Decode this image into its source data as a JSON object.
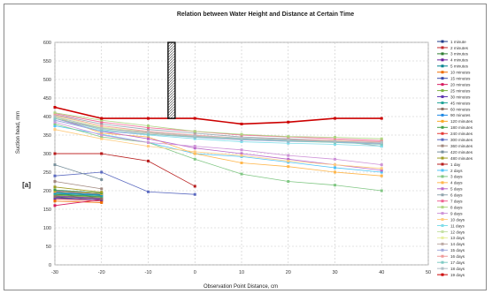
{
  "chart_data": {
    "type": "line",
    "title": "Relation between Water Height and Distance at Certain Time",
    "xlabel": "Observation Point Distance, cm",
    "ylabel": "Suction head, mm",
    "xlim": [
      -30,
      50
    ],
    "ylim": [
      0,
      600
    ],
    "xticks": [
      "-30",
      "-20",
      "-10",
      "0",
      "10",
      "20",
      "30",
      "40",
      "50"
    ],
    "yticks": [
      "0",
      "50",
      "100",
      "150",
      "200",
      "250",
      "300",
      "350",
      "400",
      "450",
      "500",
      "550",
      "600"
    ],
    "grid": true,
    "legend_position": "right",
    "annotation_marker_label": "[a]",
    "series": [
      {
        "name": "1 minute",
        "color": "#1f3a8a",
        "x": [
          -30,
          -20
        ],
        "y": [
          182,
          176
        ]
      },
      {
        "name": "2 minutes",
        "color": "#c1272d",
        "x": [
          -30,
          -20
        ],
        "y": [
          178,
          172
        ]
      },
      {
        "name": "3 minutes",
        "color": "#2e7d32",
        "x": [
          -30,
          -20
        ],
        "y": [
          190,
          184
        ]
      },
      {
        "name": "4 minutes",
        "color": "#6a1b9a",
        "x": [
          -30,
          -20
        ],
        "y": [
          186,
          180
        ]
      },
      {
        "name": "5 minutes",
        "color": "#00838f",
        "x": [
          -30,
          -20
        ],
        "y": [
          194,
          188
        ]
      },
      {
        "name": "10 minutes",
        "color": "#ef6c00",
        "x": [
          -30,
          -20
        ],
        "y": [
          172,
          168
        ]
      },
      {
        "name": "15 minutes",
        "color": "#3949ab",
        "x": [
          -30,
          -20
        ],
        "y": [
          200,
          192
        ]
      },
      {
        "name": "20 minutes",
        "color": "#d81b60",
        "x": [
          -30,
          -20
        ],
        "y": [
          160,
          176
        ]
      },
      {
        "name": "25 minutes",
        "color": "#7cb342",
        "x": [
          -30,
          -20
        ],
        "y": [
          188,
          182
        ]
      },
      {
        "name": "30 minutes",
        "color": "#5e35b1",
        "x": [
          -30,
          -20
        ],
        "y": [
          180,
          176
        ]
      },
      {
        "name": "45 minutes",
        "color": "#26a69a",
        "x": [
          -30,
          -20
        ],
        "y": [
          192,
          186
        ]
      },
      {
        "name": "60 minutes",
        "color": "#8d6e63",
        "x": [
          -30,
          -20
        ],
        "y": [
          184,
          178
        ]
      },
      {
        "name": "90 minutes",
        "color": "#1e88e5",
        "x": [
          -30,
          -20
        ],
        "y": [
          196,
          190
        ]
      },
      {
        "name": "120 minutes",
        "color": "#f9a825",
        "x": [
          -30,
          -20
        ],
        "y": [
          198,
          192
        ]
      },
      {
        "name": "180 minutes",
        "color": "#43a047",
        "x": [
          -30,
          -20
        ],
        "y": [
          202,
          194
        ]
      },
      {
        "name": "240 minutes",
        "color": "#e53935",
        "x": [
          -30,
          -20
        ],
        "y": [
          300,
          300
        ]
      },
      {
        "name": "300 minutes",
        "color": "#5c6bc0",
        "x": [
          -30,
          -20,
          -10,
          0
        ],
        "y": [
          240,
          250,
          197,
          190
        ]
      },
      {
        "name": "360 minutes",
        "color": "#a1887f",
        "x": [
          -30,
          -20
        ],
        "y": [
          225,
          205
        ]
      },
      {
        "name": "420 minutes",
        "color": "#78909c",
        "x": [
          -30,
          -20
        ],
        "y": [
          270,
          230
        ]
      },
      {
        "name": "480 minutes",
        "color": "#9e9d24",
        "x": [
          -30,
          -20
        ],
        "y": [
          210,
          196
        ]
      },
      {
        "name": "1 day",
        "color": "#b71c1c",
        "x": [
          -30,
          -20,
          -10,
          0
        ],
        "y": [
          300,
          300,
          280,
          212
        ]
      },
      {
        "name": "2 days",
        "color": "#4fc3f7",
        "x": [
          -30,
          -20,
          -10,
          0,
          10,
          20,
          30,
          40
        ],
        "y": [
          375,
          352,
          330,
          300,
          292,
          277,
          262,
          250
        ]
      },
      {
        "name": "3 days",
        "color": "#81c784",
        "x": [
          -30,
          -20,
          -10,
          0,
          10,
          20,
          30,
          40
        ],
        "y": [
          380,
          345,
          330,
          285,
          245,
          225,
          215,
          200
        ]
      },
      {
        "name": "4 days",
        "color": "#ffb74d",
        "x": [
          -30,
          -20,
          -10,
          0,
          10,
          20,
          30,
          40
        ],
        "y": [
          400,
          355,
          345,
          300,
          275,
          265,
          250,
          240
        ]
      },
      {
        "name": "5 days",
        "color": "#ba68c8",
        "x": [
          -30,
          -20,
          -10,
          0,
          10,
          20,
          30,
          40
        ],
        "y": [
          395,
          360,
          340,
          315,
          300,
          285,
          270,
          255
        ]
      },
      {
        "name": "6 days",
        "color": "#90a4ae",
        "x": [
          -30,
          -20,
          -10,
          0,
          10,
          20,
          30,
          40
        ],
        "y": [
          405,
          380,
          365,
          355,
          345,
          340,
          335,
          320
        ]
      },
      {
        "name": "7 days",
        "color": "#f06292",
        "x": [
          -30,
          -20,
          -10,
          0,
          10,
          20,
          30,
          40
        ],
        "y": [
          408,
          385,
          370,
          360,
          350,
          345,
          340,
          335
        ]
      },
      {
        "name": "8 days",
        "color": "#aed581",
        "x": [
          -30,
          -20,
          -10,
          0,
          10,
          20,
          30,
          40
        ],
        "y": [
          410,
          390,
          375,
          360,
          352,
          346,
          344,
          340
        ]
      },
      {
        "name": "9 days",
        "color": "#ce93d8",
        "x": [
          -30,
          -20,
          -10,
          0,
          10,
          20,
          30,
          40
        ],
        "y": [
          385,
          350,
          330,
          320,
          310,
          295,
          285,
          270
        ]
      },
      {
        "name": "10 days",
        "color": "#ffcc80",
        "x": [
          -30,
          -20,
          -10,
          0,
          10,
          20,
          30,
          40
        ],
        "y": [
          365,
          340,
          320,
          305,
          295,
          280,
          270,
          260
        ]
      },
      {
        "name": "11 days",
        "color": "#80deea",
        "x": [
          -30,
          -20,
          -10,
          0,
          10,
          20,
          30,
          40
        ],
        "y": [
          390,
          362,
          350,
          340,
          332,
          328,
          325,
          320
        ]
      },
      {
        "name": "12 days",
        "color": "#c5e1a5",
        "x": [
          -30,
          -20,
          -10,
          0,
          10,
          20,
          30,
          40
        ],
        "y": [
          398,
          370,
          356,
          345,
          338,
          333,
          330,
          326
        ]
      },
      {
        "name": "13 days",
        "color": "#e6ee9c",
        "x": [
          -30,
          -20,
          -10,
          0,
          10,
          20,
          30,
          40
        ],
        "y": [
          402,
          372,
          358,
          348,
          340,
          336,
          334,
          330
        ]
      },
      {
        "name": "14 days",
        "color": "#bcaaa4",
        "x": [
          -30,
          -20,
          -10,
          0,
          10,
          20,
          30,
          40
        ],
        "y": [
          395,
          368,
          355,
          346,
          339,
          335,
          332,
          328
        ]
      },
      {
        "name": "15 days",
        "color": "#9fa8da",
        "x": [
          -30,
          -20,
          -10,
          0,
          10,
          20,
          30,
          40
        ],
        "y": [
          390,
          360,
          352,
          344,
          337,
          333,
          331,
          327
        ]
      },
      {
        "name": "16 days",
        "color": "#ef9a9a",
        "x": [
          -30,
          -20,
          -10,
          0,
          10,
          20,
          30,
          40
        ],
        "y": [
          404,
          375,
          360,
          350,
          342,
          338,
          336,
          332
        ]
      },
      {
        "name": "17 days",
        "color": "#80cbc4",
        "x": [
          -30,
          -20,
          -10,
          0,
          10,
          20,
          30,
          40
        ],
        "y": [
          395,
          365,
          352,
          345,
          340,
          335,
          330,
          325
        ]
      },
      {
        "name": "18 days",
        "color": "#b0bec5",
        "x": [
          -30,
          -20,
          -10,
          0,
          10,
          20,
          30,
          40
        ],
        "y": [
          400,
          368,
          358,
          348,
          342,
          337,
          333,
          330
        ]
      },
      {
        "name": "19 days",
        "color": "#cc0000",
        "x": [
          -30,
          -20,
          -10,
          0,
          10,
          20,
          30,
          40
        ],
        "y": [
          425,
          395,
          395,
          395,
          380,
          385,
          395,
          395
        ]
      }
    ]
  }
}
